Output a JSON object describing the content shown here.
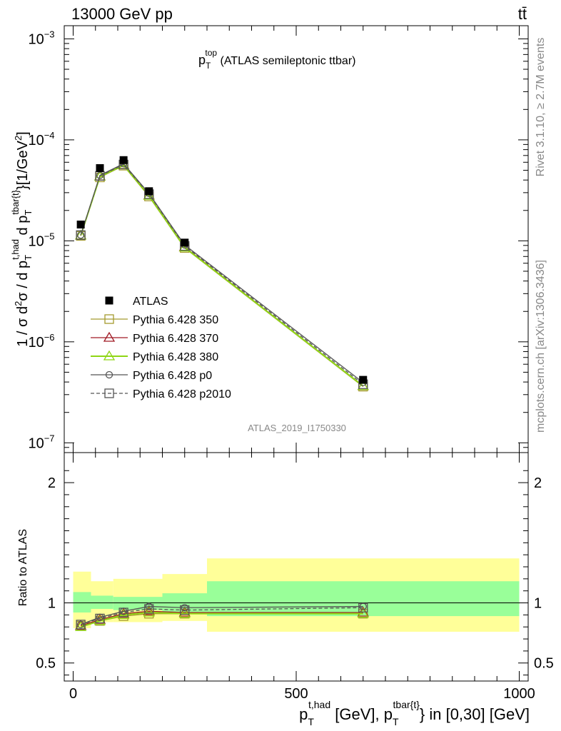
{
  "header": {
    "left": "13000 GeV pp",
    "right": "tt̄"
  },
  "plot_title": {
    "main": "p",
    "sub": "T",
    "sup": "top",
    "rest": " (ATLAS semileptonic ttbar)"
  },
  "side_labels": {
    "rivet": "Rivet 3.1.10, ≥ 2.7M events",
    "mcplots": "mcplots.cern.ch [arXiv:1306.3436]"
  },
  "watermark": "ATLAS_2019_I1750330",
  "y_label_main": {
    "a": "1 / σ d",
    "a_sup": "2",
    "b": "σ / d p",
    "b_sub": "T",
    "b_sup": "t,had",
    "c": " d p",
    "c_sub": "T",
    "c_sup": "tbar{t}",
    "d": "}[1/GeV",
    "d_sup": "2",
    "e": "]"
  },
  "y_label_ratio": "Ratio to ATLAS",
  "x_label": {
    "a": "p",
    "a_sub": "T",
    "a_sup": "t,had",
    "b": " [GeV], p",
    "b_sub": "T",
    "b_sup": "tbar{t}",
    "c": "} in [0,30] [GeV]"
  },
  "colors": {
    "data": "#000000",
    "p350": "#a59a2e",
    "p370": "#a01a24",
    "p380": "#8fd614",
    "p0": "#555555",
    "p2010": "#555555",
    "band_inner": "#99ff99",
    "band_outer": "#ffff99"
  },
  "chart_data": [
    {
      "type": "line",
      "scale": "log",
      "xlim": [
        -20,
        1020
      ],
      "ylim": [
        8e-08,
        0.00135
      ],
      "x_ticks": [
        0,
        500,
        1000
      ],
      "y_ticks": [
        {
          "value": 1e-07,
          "base": "10",
          "exp": "−7"
        },
        {
          "value": 1e-06,
          "base": "10",
          "exp": "−6"
        },
        {
          "value": 1e-05,
          "base": "10",
          "exp": "−5"
        },
        {
          "value": 0.0001,
          "base": "10",
          "exp": "−4"
        },
        {
          "value": 0.001,
          "base": "10",
          "exp": "−3"
        }
      ],
      "legend_position": "center-left",
      "x": [
        17,
        60,
        113,
        170,
        250,
        650
      ],
      "data": {
        "name": "ATLAS",
        "values": [
          1.45e-05,
          5.25e-05,
          6.3e-05,
          3.1e-05,
          9.6e-06,
          4.2e-07
        ]
      },
      "series": [
        {
          "name": "Pythia 6.428 350",
          "key": "p350",
          "marker": "square",
          "values": [
            1.12e-05,
            4.25e-05,
            5.55e-05,
            2.75e-05,
            8.5e-06,
            3.6e-07
          ]
        },
        {
          "name": "Pythia 6.428 370",
          "key": "p370",
          "marker": "triangle",
          "values": [
            1.13e-05,
            4.35e-05,
            5.65e-05,
            2.82e-05,
            8.7e-06,
            3.65e-07
          ]
        },
        {
          "name": "Pythia 6.428 380",
          "key": "p380",
          "marker": "triangle",
          "values": [
            1.13e-05,
            4.33e-05,
            5.62e-05,
            2.8e-05,
            8.6e-06,
            3.65e-07
          ]
        },
        {
          "name": "Pythia 6.428 p0",
          "key": "p0",
          "marker": "circle",
          "values": [
            1.14e-05,
            4.45e-05,
            5.8e-05,
            2.95e-05,
            9.1e-06,
            3.95e-07
          ]
        },
        {
          "name": "Pythia 6.428 p2010",
          "key": "p2010",
          "marker": "square",
          "dashed": true,
          "values": [
            1.14e-05,
            4.4e-05,
            5.7e-05,
            2.9e-05,
            8.9e-06,
            3.8e-07
          ]
        }
      ]
    },
    {
      "type": "line",
      "ylabel": "Ratio to ATLAS",
      "xlim": [
        -20,
        1020
      ],
      "ylim": [
        0.35,
        2.25
      ],
      "y_ticks": [
        0.5,
        1,
        2
      ],
      "reference_line": 1,
      "bands": [
        {
          "xmin": 0,
          "xmax": 40,
          "inner": [
            0.92,
            1.09
          ],
          "outer": [
            0.79,
            1.26
          ]
        },
        {
          "xmin": 40,
          "xmax": 90,
          "inner": [
            0.95,
            1.06
          ],
          "outer": [
            0.84,
            1.18
          ]
        },
        {
          "xmin": 90,
          "xmax": 200,
          "inner": [
            0.94,
            1.05
          ],
          "outer": [
            0.84,
            1.2
          ]
        },
        {
          "xmin": 200,
          "xmax": 300,
          "inner": [
            0.92,
            1.08
          ],
          "outer": [
            0.85,
            1.24
          ]
        },
        {
          "xmin": 300,
          "xmax": 1000,
          "inner": [
            0.89,
            1.18
          ],
          "outer": [
            0.76,
            1.37
          ]
        }
      ],
      "x": [
        17,
        60,
        113,
        170,
        250,
        650
      ],
      "series": [
        {
          "name": "Pythia 6.428 350",
          "key": "p350",
          "marker": "square",
          "values": [
            0.81,
            0.85,
            0.89,
            0.91,
            0.91,
            0.91
          ]
        },
        {
          "name": "Pythia 6.428 370",
          "key": "p370",
          "marker": "triangle",
          "values": [
            0.81,
            0.86,
            0.91,
            0.93,
            0.92,
            0.92
          ]
        },
        {
          "name": "Pythia 6.428 380",
          "key": "p380",
          "marker": "triangle",
          "values": [
            0.8,
            0.85,
            0.9,
            0.92,
            0.91,
            0.91
          ]
        },
        {
          "name": "Pythia 6.428 p0",
          "key": "p0",
          "marker": "circle",
          "values": [
            0.82,
            0.88,
            0.93,
            0.97,
            0.96,
            0.97
          ]
        },
        {
          "name": "Pythia 6.428 p2010",
          "key": "p2010",
          "marker": "square",
          "dashed": true,
          "values": [
            0.82,
            0.87,
            0.92,
            0.95,
            0.94,
            0.96
          ]
        }
      ]
    }
  ]
}
